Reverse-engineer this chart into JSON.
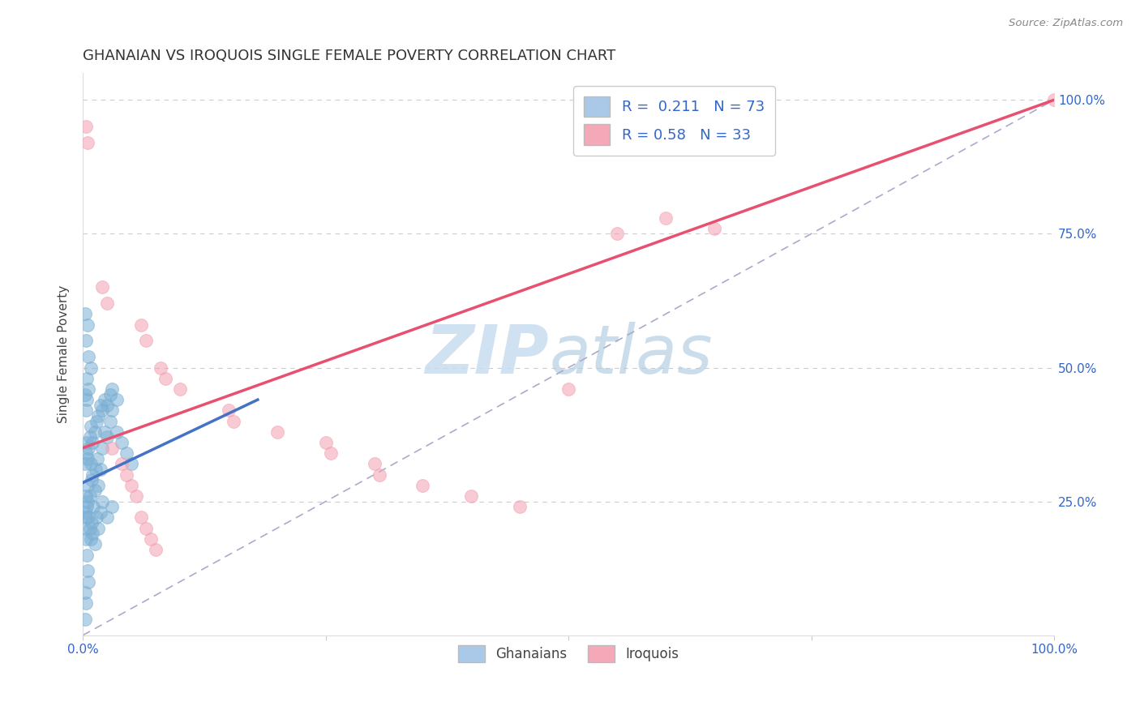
{
  "title": "GHANAIAN VS IROQUOIS SINGLE FEMALE POVERTY CORRELATION CHART",
  "source": "Source: ZipAtlas.com",
  "ylabel": "Single Female Poverty",
  "blue_label": "Ghanaians",
  "pink_label": "Iroquois",
  "blue_R": 0.211,
  "blue_N": 73,
  "pink_R": 0.58,
  "pink_N": 33,
  "blue_color": "#7BAFD4",
  "pink_color": "#F4A0B0",
  "blue_line_color": "#4472C4",
  "pink_line_color": "#E85070",
  "blue_scatter": [
    [
      0.005,
      0.28
    ],
    [
      0.008,
      0.32
    ],
    [
      0.01,
      0.3
    ],
    [
      0.012,
      0.27
    ],
    [
      0.015,
      0.33
    ],
    [
      0.018,
      0.31
    ],
    [
      0.02,
      0.35
    ],
    [
      0.022,
      0.38
    ],
    [
      0.025,
      0.37
    ],
    [
      0.028,
      0.4
    ],
    [
      0.03,
      0.42
    ],
    [
      0.005,
      0.25
    ],
    [
      0.003,
      0.22
    ],
    [
      0.007,
      0.26
    ],
    [
      0.009,
      0.29
    ],
    [
      0.011,
      0.24
    ],
    [
      0.013,
      0.31
    ],
    [
      0.016,
      0.28
    ],
    [
      0.004,
      0.48
    ],
    [
      0.006,
      0.52
    ],
    [
      0.008,
      0.5
    ],
    [
      0.003,
      0.55
    ],
    [
      0.005,
      0.58
    ],
    [
      0.002,
      0.6
    ],
    [
      0.002,
      0.45
    ],
    [
      0.003,
      0.42
    ],
    [
      0.004,
      0.44
    ],
    [
      0.006,
      0.46
    ],
    [
      0.002,
      0.2
    ],
    [
      0.003,
      0.18
    ],
    [
      0.004,
      0.15
    ],
    [
      0.005,
      0.12
    ],
    [
      0.006,
      0.1
    ],
    [
      0.002,
      0.08
    ],
    [
      0.003,
      0.06
    ],
    [
      0.002,
      0.03
    ],
    [
      0.035,
      0.38
    ],
    [
      0.04,
      0.36
    ],
    [
      0.045,
      0.34
    ],
    [
      0.05,
      0.32
    ],
    [
      0.002,
      0.23
    ],
    [
      0.003,
      0.26
    ],
    [
      0.004,
      0.24
    ],
    [
      0.006,
      0.22
    ],
    [
      0.007,
      0.2
    ],
    [
      0.008,
      0.18
    ],
    [
      0.009,
      0.21
    ],
    [
      0.01,
      0.19
    ],
    [
      0.012,
      0.17
    ],
    [
      0.014,
      0.22
    ],
    [
      0.016,
      0.2
    ],
    [
      0.018,
      0.23
    ],
    [
      0.02,
      0.25
    ],
    [
      0.025,
      0.22
    ],
    [
      0.03,
      0.24
    ],
    [
      0.002,
      0.32
    ],
    [
      0.003,
      0.34
    ],
    [
      0.004,
      0.36
    ],
    [
      0.005,
      0.33
    ],
    [
      0.006,
      0.35
    ],
    [
      0.007,
      0.37
    ],
    [
      0.008,
      0.39
    ],
    [
      0.01,
      0.36
    ],
    [
      0.012,
      0.38
    ],
    [
      0.014,
      0.4
    ],
    [
      0.016,
      0.41
    ],
    [
      0.018,
      0.43
    ],
    [
      0.02,
      0.42
    ],
    [
      0.022,
      0.44
    ],
    [
      0.025,
      0.43
    ],
    [
      0.028,
      0.45
    ],
    [
      0.03,
      0.46
    ],
    [
      0.035,
      0.44
    ]
  ],
  "pink_scatter": [
    [
      0.003,
      0.95
    ],
    [
      0.005,
      0.92
    ],
    [
      0.02,
      0.65
    ],
    [
      0.025,
      0.62
    ],
    [
      0.06,
      0.58
    ],
    [
      0.065,
      0.55
    ],
    [
      0.08,
      0.5
    ],
    [
      0.085,
      0.48
    ],
    [
      0.1,
      0.46
    ],
    [
      0.15,
      0.42
    ],
    [
      0.155,
      0.4
    ],
    [
      0.2,
      0.38
    ],
    [
      0.25,
      0.36
    ],
    [
      0.255,
      0.34
    ],
    [
      0.3,
      0.32
    ],
    [
      0.305,
      0.3
    ],
    [
      0.35,
      0.28
    ],
    [
      0.4,
      0.26
    ],
    [
      0.45,
      0.24
    ],
    [
      0.5,
      0.46
    ],
    [
      0.55,
      0.75
    ],
    [
      0.6,
      0.78
    ],
    [
      0.65,
      0.76
    ],
    [
      1.0,
      1.0
    ],
    [
      0.03,
      0.35
    ],
    [
      0.04,
      0.32
    ],
    [
      0.045,
      0.3
    ],
    [
      0.05,
      0.28
    ],
    [
      0.055,
      0.26
    ],
    [
      0.06,
      0.22
    ],
    [
      0.065,
      0.2
    ],
    [
      0.07,
      0.18
    ],
    [
      0.075,
      0.16
    ]
  ],
  "xlim": [
    0.0,
    1.0
  ],
  "ylim": [
    0.0,
    1.05
  ],
  "xticks": [
    0.0,
    0.25,
    0.5,
    0.75,
    1.0
  ],
  "xticklabels": [
    "0.0%",
    "",
    "",
    "",
    "100.0%"
  ],
  "ytick_positions_right": [
    0.25,
    0.5,
    0.75,
    1.0
  ],
  "ytick_labels_right": [
    "25.0%",
    "50.0%",
    "75.0%",
    "100.0%"
  ],
  "blue_line_x": [
    0.0,
    0.18
  ],
  "blue_line_y": [
    0.285,
    0.44
  ],
  "pink_line_x": [
    0.0,
    1.0
  ],
  "pink_line_y": [
    0.35,
    1.0
  ],
  "diag_line_x": [
    0.0,
    1.0
  ],
  "diag_line_y": [
    0.0,
    1.0
  ],
  "background_color": "#ffffff",
  "grid_color": "#cccccc",
  "title_fontsize": 13,
  "axis_label_fontsize": 11,
  "tick_fontsize": 11
}
